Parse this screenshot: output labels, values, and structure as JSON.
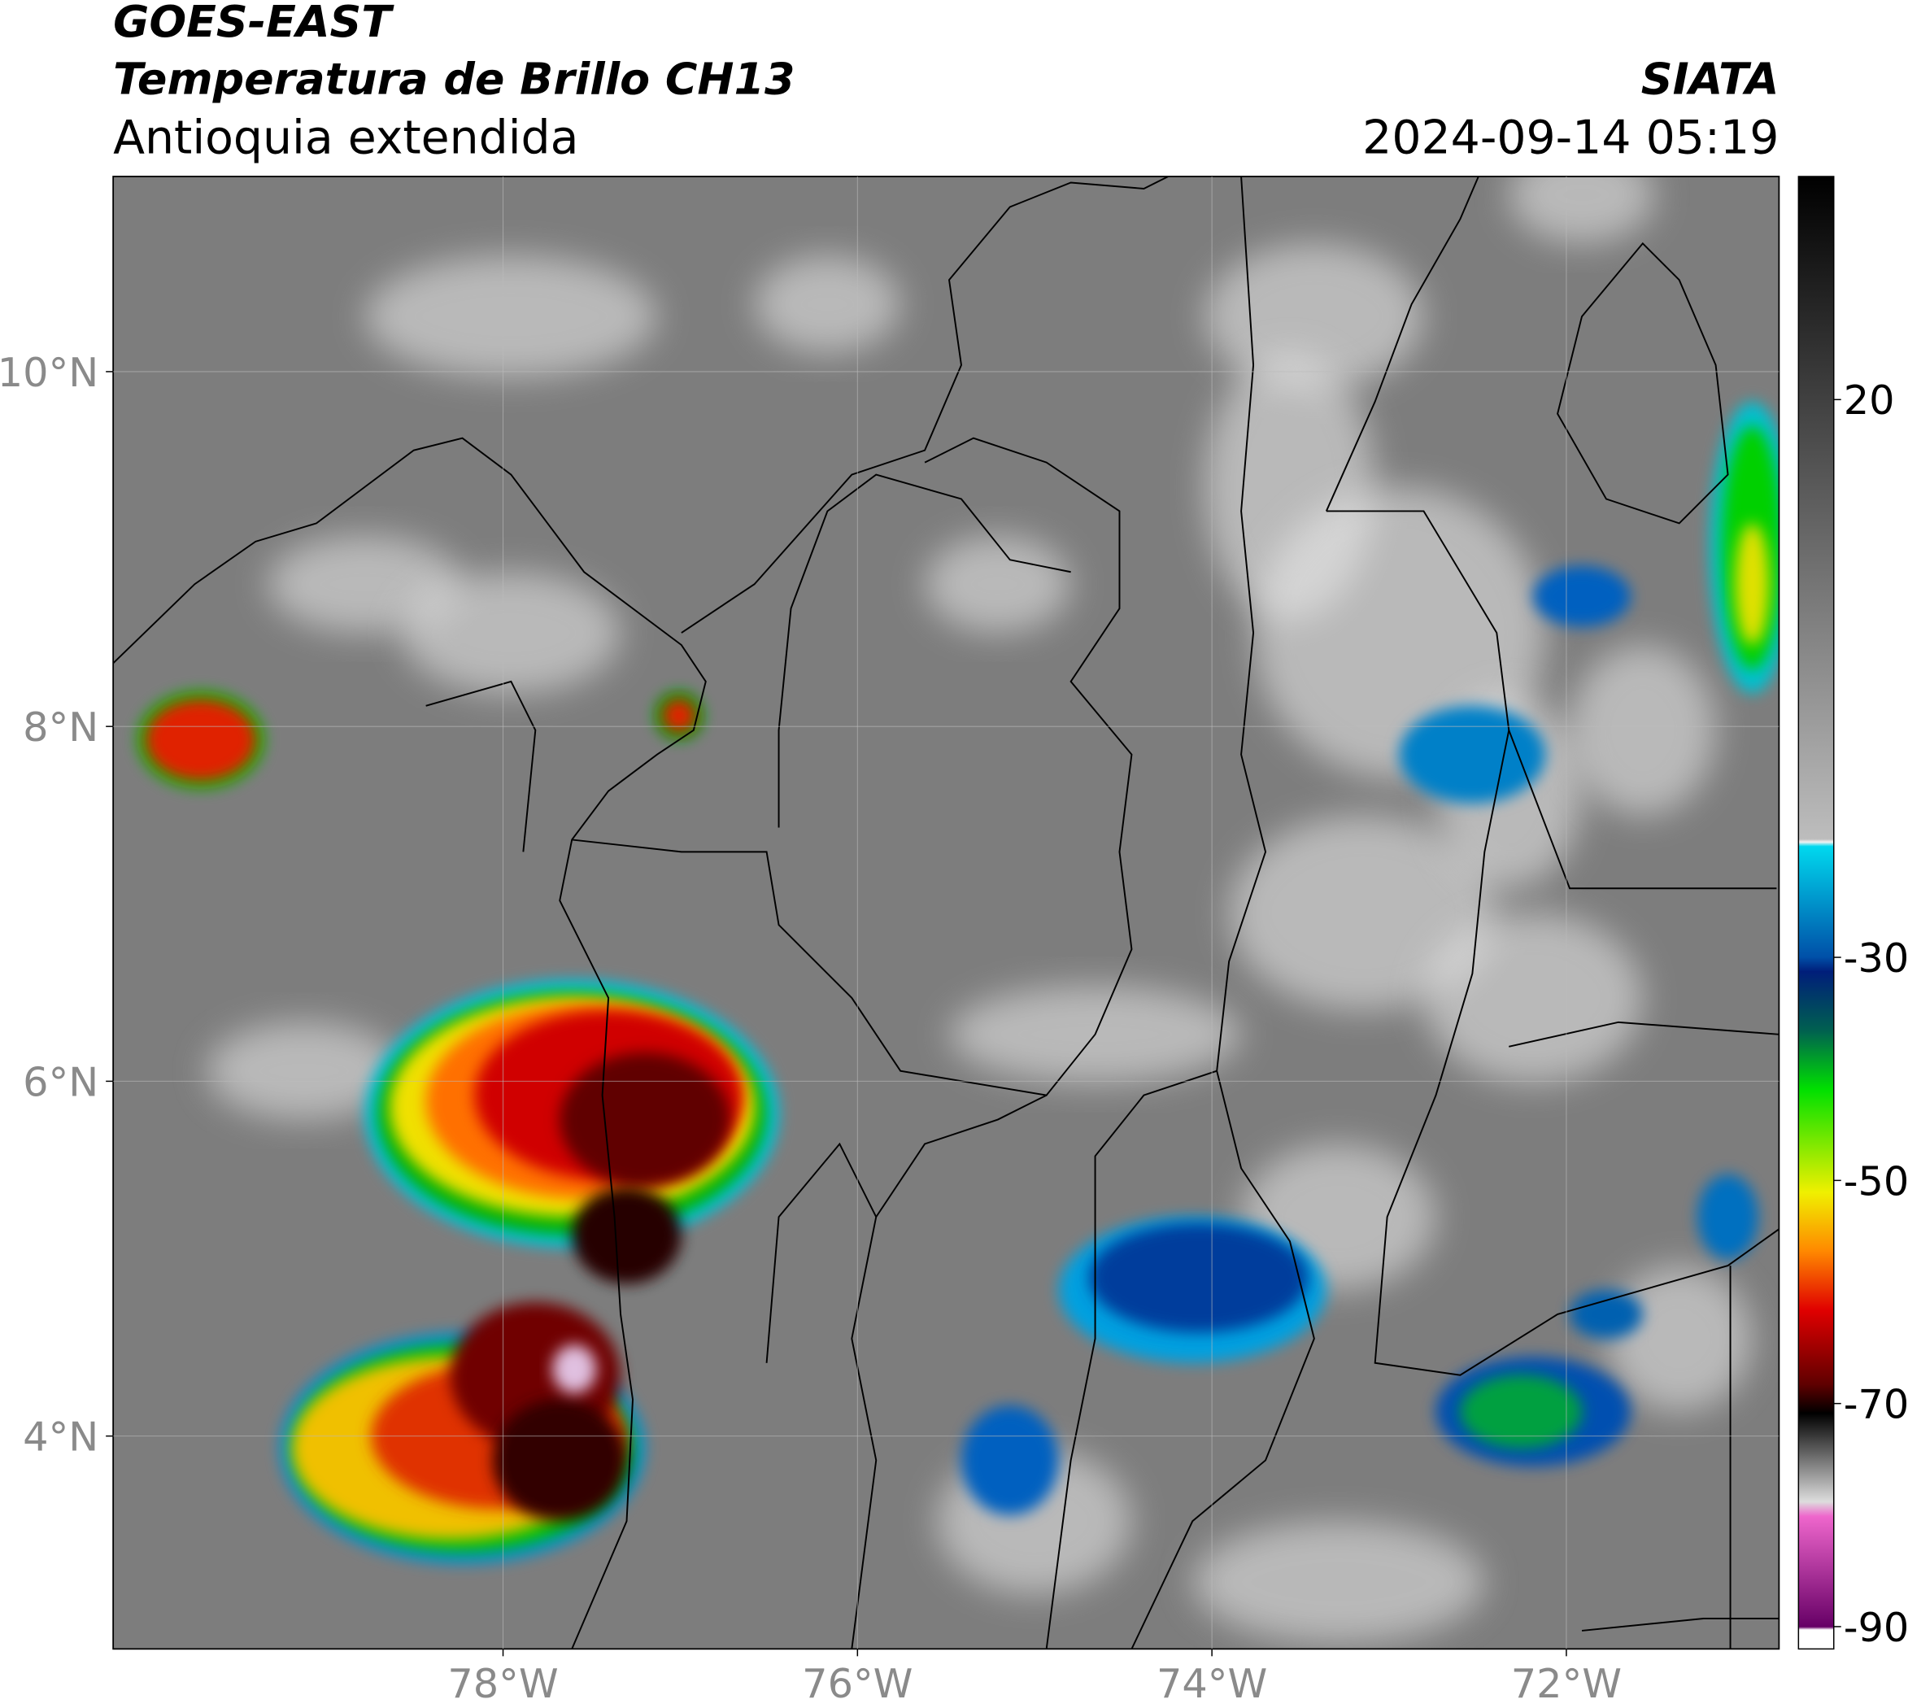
{
  "chart_data": {
    "type": "map",
    "title": "GOES-EAST",
    "subtitle": "Temperatura de Brillo CH13",
    "region": "Antioquia extendida",
    "source": "SIATA",
    "timestamp": "2024-09-14 05:19",
    "xlim": [
      -80.2,
      -70.8
    ],
    "ylim": [
      2.8,
      11.1
    ],
    "xticks": [
      {
        "value": -78,
        "label": "78°W"
      },
      {
        "value": -76,
        "label": "76°W"
      },
      {
        "value": -74,
        "label": "74°W"
      },
      {
        "value": -72,
        "label": "72°W"
      }
    ],
    "yticks": [
      {
        "value": 4,
        "label": "4°N"
      },
      {
        "value": 6,
        "label": "6°N"
      },
      {
        "value": 8,
        "label": "8°N"
      },
      {
        "value": 10,
        "label": "10°N"
      }
    ],
    "grid": true,
    "colorbar": {
      "clim": [
        -92,
        40
      ],
      "ticks": [
        20,
        -30,
        -50,
        -70,
        -90
      ]
    }
  }
}
